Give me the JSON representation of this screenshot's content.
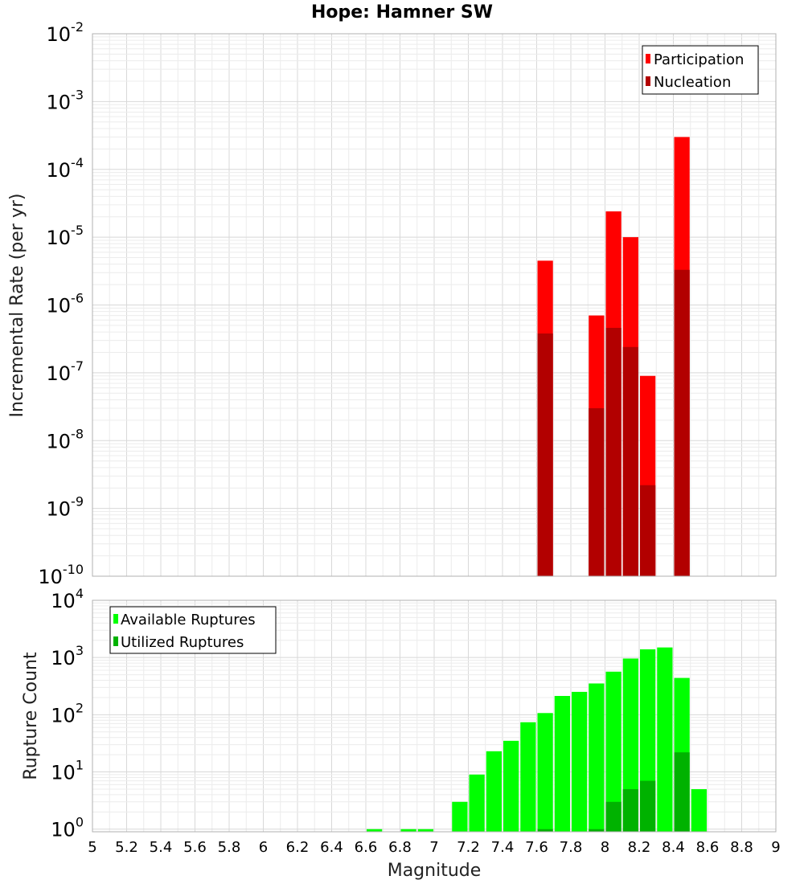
{
  "chart_data": [
    {
      "type": "bar",
      "title": "Hope: Hamner SW",
      "xlabel": "",
      "ylabel": "Incremental Rate (per yr)",
      "xlim": [
        5,
        9
      ],
      "ylim": [
        1e-10,
        0.01
      ],
      "yscale": "log",
      "ytick_exponents": [
        -10,
        -9,
        -8,
        -7,
        -6,
        -5,
        -4,
        -3,
        -2
      ],
      "grid": true,
      "legend": {
        "position": "top-right",
        "entries": [
          "Participation",
          "Nucleation"
        ]
      },
      "colors": {
        "Participation": "#ff0000",
        "Nucleation": "#b20000"
      },
      "series": [
        {
          "name": "Participation",
          "x": [
            7.65,
            7.95,
            8.05,
            8.15,
            8.25,
            8.45
          ],
          "values": [
            4.5e-06,
            7e-07,
            2.4e-05,
            1e-05,
            9e-08,
            0.0003
          ]
        },
        {
          "name": "Nucleation",
          "x": [
            7.65,
            7.95,
            8.05,
            8.15,
            8.25,
            8.45
          ],
          "values": [
            3.8e-07,
            3e-08,
            4.6e-07,
            2.4e-07,
            2.2e-09,
            3.3e-06
          ]
        }
      ]
    },
    {
      "type": "bar",
      "title": "",
      "xlabel": "Magnitude",
      "ylabel": "Rupture Count",
      "xlim": [
        5,
        9
      ],
      "xticks": [
        "5",
        "5.2",
        "5.4",
        "5.6",
        "5.8",
        "6",
        "6.2",
        "6.4",
        "6.6",
        "6.8",
        "7",
        "7.2",
        "7.4",
        "7.6",
        "7.8",
        "8",
        "8.2",
        "8.4",
        "8.6",
        "8.8",
        "9"
      ],
      "ylim": [
        0.9,
        10000
      ],
      "yscale": "log",
      "ytick_exponents": [
        0,
        1,
        2,
        3,
        4
      ],
      "grid": true,
      "legend": {
        "position": "top-left",
        "entries": [
          "Available Ruptures",
          "Utilized Ruptures"
        ]
      },
      "colors": {
        "Available Ruptures": "#00ff00",
        "Utilized Ruptures": "#00b200"
      },
      "series": [
        {
          "name": "Available Ruptures",
          "x": [
            6.65,
            6.85,
            6.95,
            7.15,
            7.25,
            7.35,
            7.45,
            7.55,
            7.65,
            7.75,
            7.85,
            7.95,
            8.05,
            8.15,
            8.25,
            8.35,
            8.45,
            8.55
          ],
          "values": [
            1,
            1,
            1,
            3,
            9,
            23,
            35,
            74,
            107,
            213,
            251,
            352,
            566,
            960,
            1390,
            1500,
            440,
            5
          ]
        },
        {
          "name": "Utilized Ruptures",
          "x": [
            7.65,
            7.95,
            8.05,
            8.15,
            8.25,
            8.45
          ],
          "values": [
            1,
            1,
            3,
            5,
            7,
            22
          ]
        }
      ]
    }
  ]
}
